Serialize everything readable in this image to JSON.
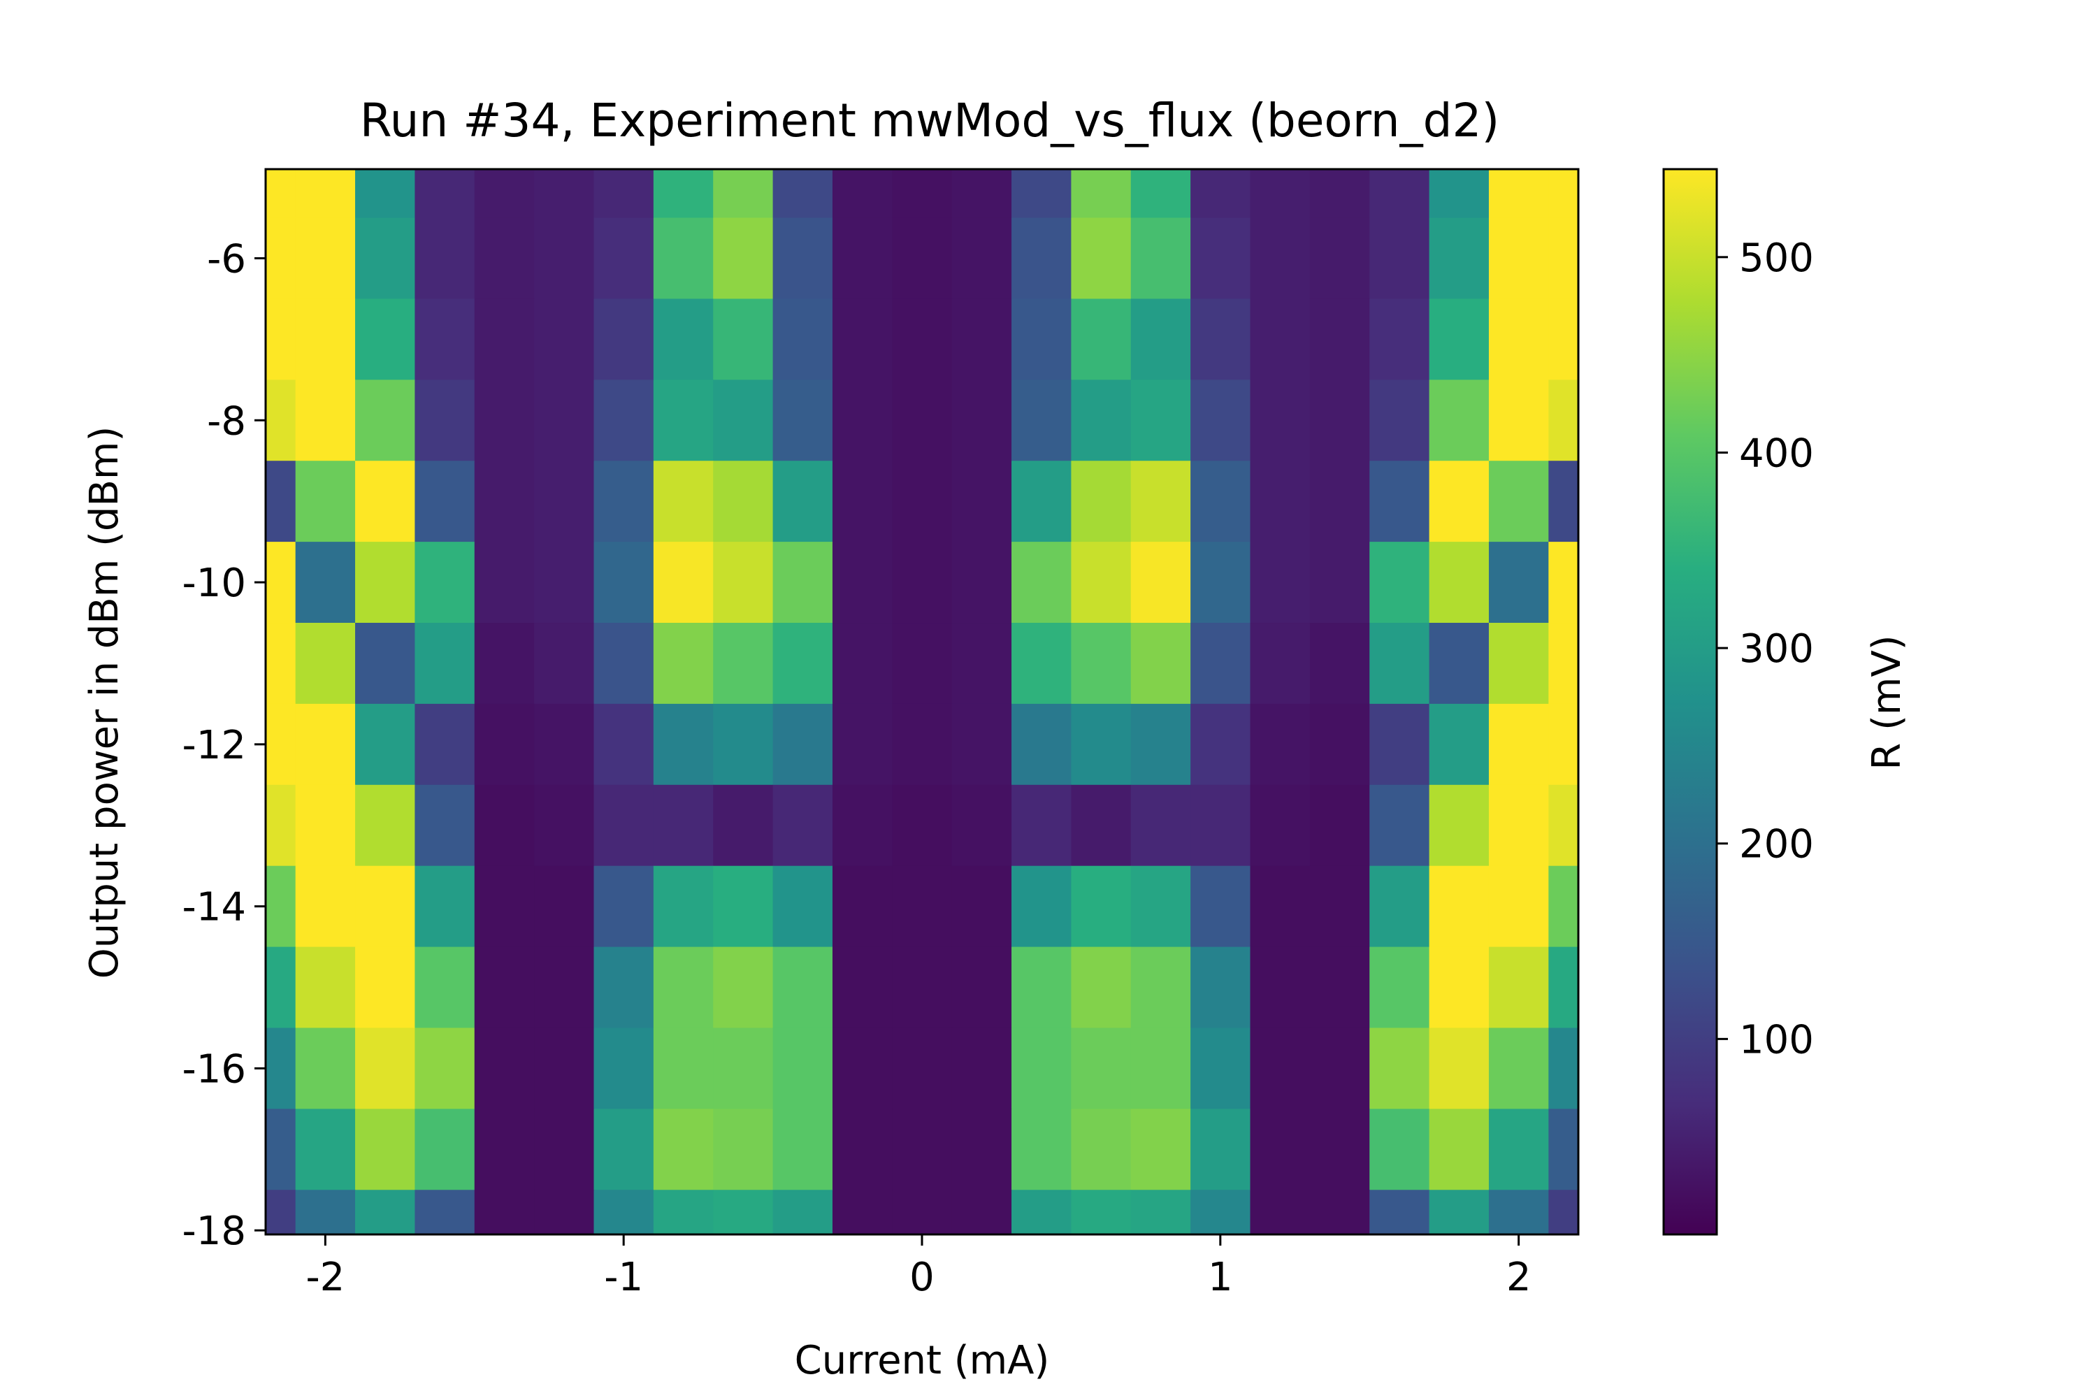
{
  "chart_data": {
    "type": "heatmap",
    "title": "Run #34, Experiment mwMod_vs_flux (beorn_d2)",
    "xlabel": "Current (mA)",
    "ylabel": "Output power in dBm (dBm)",
    "xlim": [
      -2.2,
      2.2
    ],
    "ylim": [
      -18.05,
      -4.9
    ],
    "x_ticks": [
      -2,
      -1,
      0,
      1,
      2
    ],
    "x_tick_labels": [
      "-2",
      "-1",
      "0",
      "1",
      "2"
    ],
    "y_ticks": [
      -6,
      -8,
      -10,
      -12,
      -14,
      -16,
      -18
    ],
    "y_tick_labels": [
      "-6",
      "-8",
      "-10",
      "-12",
      "-14",
      "-16",
      "-18"
    ],
    "colormap": "viridis",
    "colorbar": {
      "label": "R (mV)",
      "range": [
        0,
        545
      ],
      "ticks": [
        100,
        200,
        300,
        400,
        500
      ],
      "tick_labels": [
        "100",
        "200",
        "300",
        "400",
        "500"
      ]
    },
    "grid": false,
    "value_unit": "mV",
    "x": [
      -2.2,
      -2.0,
      -1.8,
      -1.6,
      -1.4,
      -1.2,
      -1.0,
      -0.8,
      -0.6,
      -0.4,
      -0.2,
      0.0,
      0.2,
      0.4,
      0.6,
      0.8,
      1.0,
      1.2,
      1.4,
      1.6,
      1.8,
      2.0,
      2.2
    ],
    "y": [
      -5,
      -6,
      -7,
      -8,
      -9,
      -10,
      -11,
      -12,
      -13,
      -14,
      -15,
      -16,
      -17,
      -18
    ],
    "values": [
      [
        545,
        545,
        280,
        60,
        40,
        45,
        60,
        350,
        430,
        120,
        30,
        25,
        30,
        120,
        430,
        350,
        60,
        45,
        40,
        60,
        280,
        545,
        545
      ],
      [
        545,
        545,
        300,
        60,
        40,
        45,
        70,
        380,
        450,
        140,
        30,
        25,
        30,
        140,
        450,
        380,
        70,
        45,
        40,
        60,
        300,
        545,
        545
      ],
      [
        545,
        545,
        340,
        70,
        40,
        45,
        90,
        300,
        360,
        150,
        30,
        25,
        30,
        150,
        360,
        300,
        90,
        45,
        40,
        70,
        340,
        545,
        545
      ],
      [
        520,
        545,
        420,
        90,
        40,
        45,
        120,
        320,
        300,
        160,
        30,
        25,
        30,
        160,
        300,
        320,
        120,
        45,
        40,
        90,
        420,
        545,
        520
      ],
      [
        120,
        420,
        545,
        150,
        40,
        45,
        160,
        500,
        470,
        300,
        30,
        25,
        30,
        300,
        470,
        500,
        160,
        45,
        40,
        150,
        545,
        420,
        120
      ],
      [
        545,
        200,
        480,
        350,
        40,
        45,
        180,
        540,
        500,
        420,
        30,
        25,
        30,
        420,
        500,
        540,
        180,
        45,
        40,
        350,
        480,
        200,
        545
      ],
      [
        545,
        480,
        150,
        300,
        30,
        40,
        140,
        440,
        400,
        350,
        30,
        25,
        30,
        350,
        400,
        440,
        140,
        40,
        30,
        300,
        150,
        480,
        545
      ],
      [
        545,
        545,
        300,
        100,
        25,
        30,
        80,
        240,
        260,
        220,
        30,
        25,
        30,
        220,
        260,
        240,
        80,
        30,
        25,
        100,
        300,
        545,
        545
      ],
      [
        520,
        545,
        480,
        150,
        20,
        25,
        60,
        60,
        40,
        60,
        25,
        20,
        25,
        60,
        40,
        60,
        60,
        25,
        20,
        150,
        480,
        545,
        520
      ],
      [
        420,
        545,
        545,
        300,
        20,
        20,
        150,
        320,
        340,
        280,
        20,
        20,
        20,
        280,
        340,
        320,
        150,
        20,
        20,
        300,
        545,
        545,
        420
      ],
      [
        330,
        500,
        545,
        400,
        20,
        20,
        240,
        420,
        440,
        400,
        20,
        20,
        20,
        400,
        440,
        420,
        240,
        20,
        20,
        400,
        545,
        500,
        330
      ],
      [
        250,
        420,
        520,
        450,
        20,
        20,
        260,
        420,
        420,
        400,
        20,
        20,
        20,
        400,
        420,
        420,
        260,
        20,
        20,
        450,
        520,
        420,
        250
      ],
      [
        160,
        320,
        460,
        380,
        20,
        20,
        300,
        440,
        430,
        400,
        20,
        20,
        20,
        400,
        430,
        440,
        300,
        20,
        20,
        380,
        460,
        320,
        160
      ],
      [
        100,
        200,
        300,
        150,
        20,
        20,
        250,
        320,
        330,
        300,
        20,
        20,
        20,
        300,
        330,
        320,
        250,
        20,
        20,
        150,
        300,
        200,
        100
      ]
    ]
  }
}
